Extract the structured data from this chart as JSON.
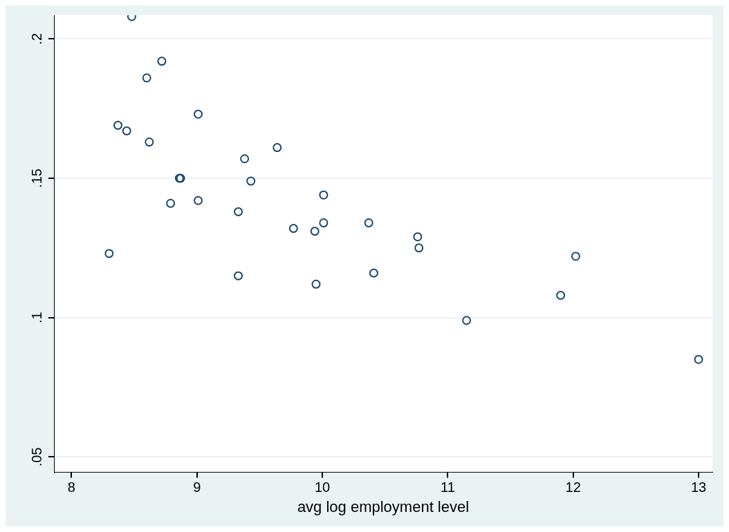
{
  "chart_data": {
    "type": "scatter",
    "xlabel": "avg log employment level",
    "x": [
      8.48,
      8.72,
      8.6,
      8.37,
      8.44,
      8.62,
      9.01,
      9.64,
      9.38,
      8.86,
      8.87,
      9.43,
      10.01,
      8.79,
      9.01,
      9.33,
      10.01,
      9.77,
      9.94,
      10.37,
      10.76,
      10.77,
      8.3,
      12.02,
      9.33,
      9.95,
      10.41,
      11.9,
      11.15,
      13.0
    ],
    "series": [
      {
        "color": "#1a476f",
        "values": [
          0.208,
          0.192,
          0.186,
          0.169,
          0.167,
          0.163,
          0.173,
          0.161,
          0.157,
          0.15,
          0.15,
          0.149,
          0.144,
          0.141,
          0.142,
          0.138,
          0.134,
          0.132,
          0.131,
          0.134,
          0.129,
          0.125,
          0.123,
          0.122,
          0.115,
          0.112,
          0.116,
          0.108,
          0.099,
          0.085
        ]
      }
    ],
    "xlim": [
      7.86,
      13.11
    ],
    "xticks": [
      8,
      9,
      10,
      11,
      12,
      13
    ],
    "ylim": [
      0.0445,
      0.2085
    ],
    "yticks": [
      {
        "value": 0.05,
        "label": ".05"
      },
      {
        "value": 0.1,
        "label": ".1"
      },
      {
        "value": 0.15,
        "label": ".15"
      },
      {
        "value": 0.2,
        "label": ".2"
      }
    ],
    "grid": "y",
    "marker": "circle",
    "legend": false
  }
}
